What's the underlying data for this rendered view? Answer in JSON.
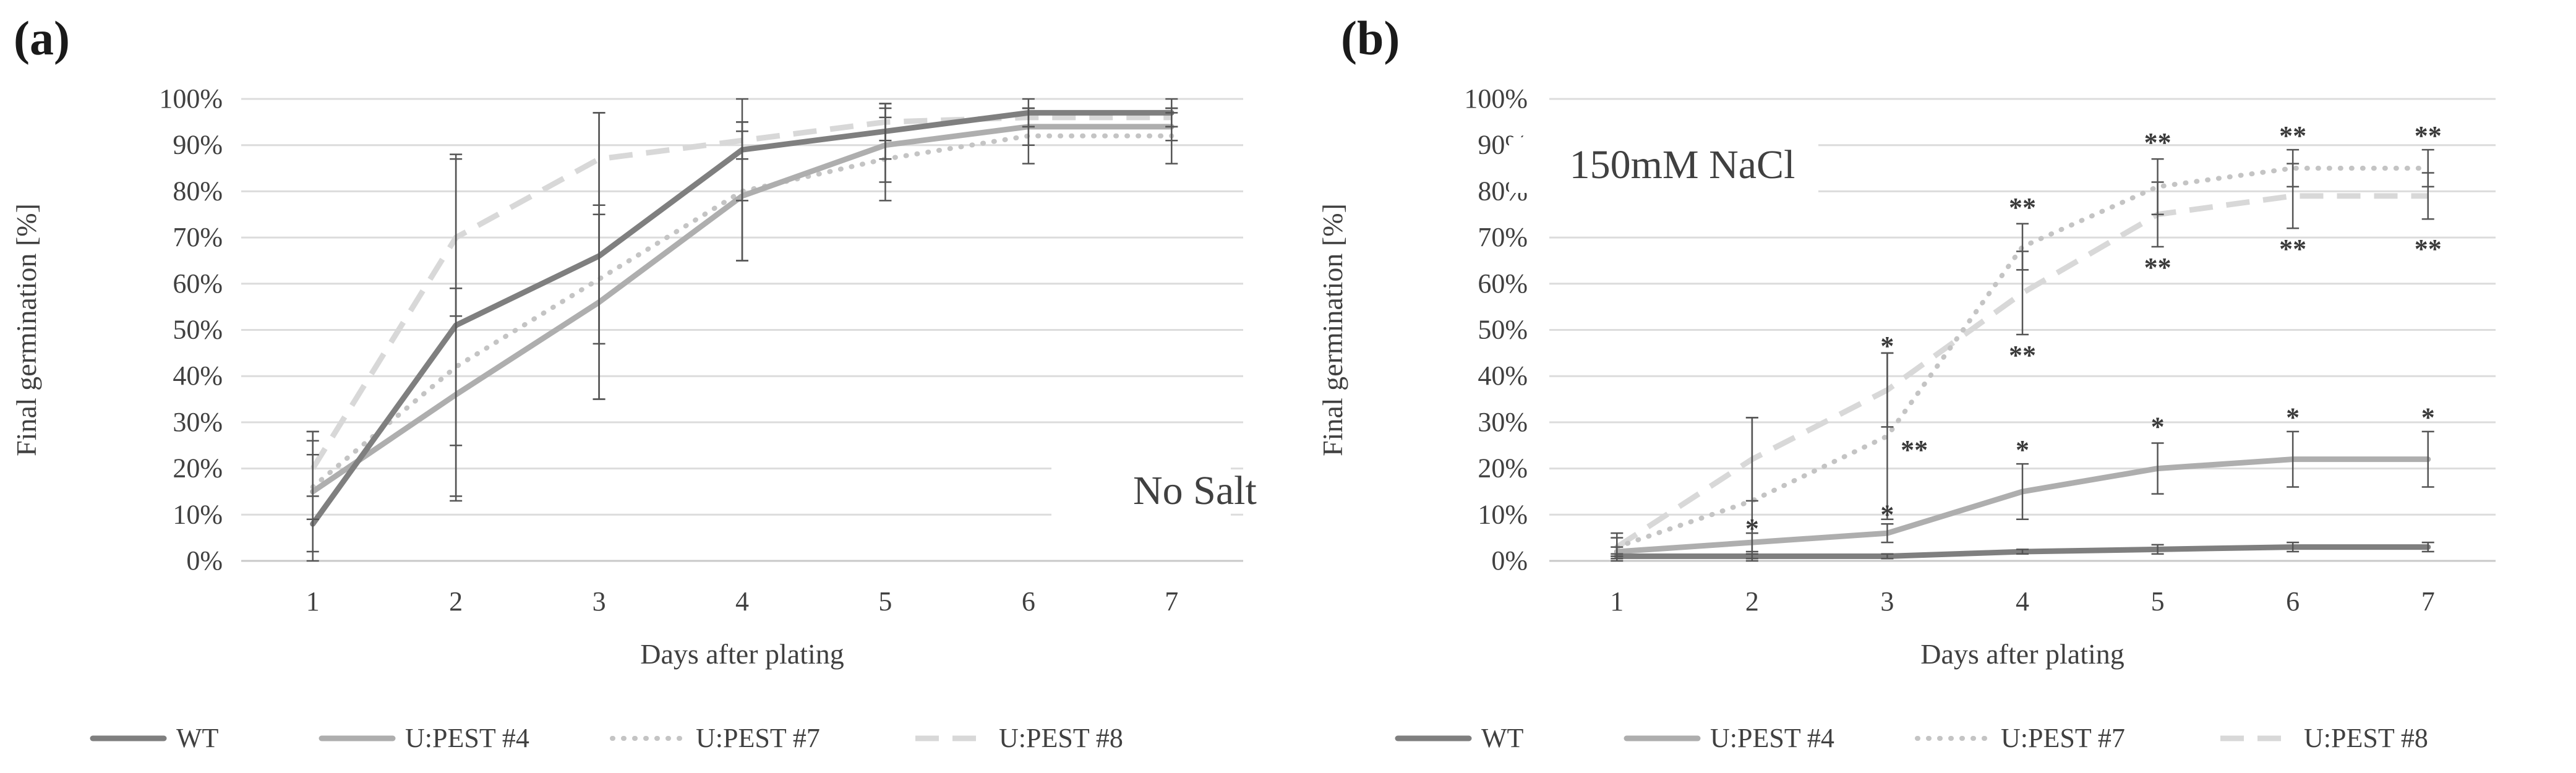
{
  "chart_data": [
    {
      "panel": "(a)",
      "type": "line",
      "title": "",
      "annotation": "No Salt",
      "xlabel": "Days after plating",
      "ylabel": "Final germination [%]",
      "categories": [
        "1",
        "2",
        "3",
        "4",
        "5",
        "6",
        "7"
      ],
      "ylim": [
        0,
        100
      ],
      "yticks": [
        "0%",
        "10%",
        "20%",
        "30%",
        "40%",
        "50%",
        "60%",
        "70%",
        "80%",
        "90%",
        "100%"
      ],
      "grid": true,
      "series": [
        {
          "name": "WT",
          "style": "solid-dark",
          "values": [
            8,
            51,
            66,
            89,
            93,
            97,
            97
          ],
          "errors": [
            20,
            37,
            31,
            11,
            6,
            3,
            3
          ]
        },
        {
          "name": "U:PEST #4",
          "style": "solid-light",
          "values": [
            15,
            36,
            56,
            79,
            90,
            94,
            94
          ],
          "errors": [
            13,
            23,
            21,
            14,
            8,
            4,
            3
          ]
        },
        {
          "name": "U:PEST #7",
          "style": "dotted",
          "values": [
            16,
            42,
            61,
            80,
            87,
            92,
            92
          ],
          "errors": [
            7,
            17,
            14,
            15,
            9,
            6,
            6
          ]
        },
        {
          "name": "U:PEST #8",
          "style": "dashed",
          "values": [
            20,
            70,
            87,
            91,
            95,
            96,
            96
          ],
          "errors": [
            6,
            17,
            10,
            4,
            4,
            2,
            2
          ]
        }
      ],
      "significance": []
    },
    {
      "panel": "(b)",
      "type": "line",
      "title": "",
      "annotation": "150mM NaCl",
      "xlabel": "Days after plating",
      "ylabel": "Final  germination [%]",
      "categories": [
        "1",
        "2",
        "3",
        "4",
        "5",
        "6",
        "7"
      ],
      "ylim": [
        0,
        100
      ],
      "yticks": [
        "0%",
        "10%",
        "20%",
        "30%",
        "40%",
        "50%",
        "60%",
        "70%",
        "80%",
        "90%",
        "100%"
      ],
      "grid": true,
      "series": [
        {
          "name": "WT",
          "style": "solid-dark",
          "values": [
            1,
            1,
            1,
            2,
            2.5,
            3,
            3
          ],
          "errors": [
            0.5,
            0.5,
            0.5,
            0.5,
            1,
            1,
            1
          ]
        },
        {
          "name": "U:PEST #4",
          "style": "solid-light",
          "values": [
            2,
            4,
            6,
            15,
            20,
            22,
            22
          ],
          "errors": [
            1,
            2,
            2,
            6,
            5.5,
            6,
            6
          ]
        },
        {
          "name": "U:PEST #7",
          "style": "dotted",
          "values": [
            3,
            13,
            27,
            68,
            81,
            85,
            85
          ],
          "errors": [
            3,
            18,
            18,
            5,
            6,
            4,
            4
          ]
        },
        {
          "name": "U:PEST #8",
          "style": "dashed",
          "values": [
            3,
            22,
            37,
            58,
            75,
            79,
            79
          ],
          "errors": [
            2,
            9,
            8,
            9,
            7,
            7,
            5
          ]
        }
      ],
      "significance": [
        {
          "day": 2,
          "y": 7.5,
          "text": "*"
        },
        {
          "day": 3,
          "y": 10.5,
          "text": "*"
        },
        {
          "day": 3,
          "y": 47,
          "text": "*"
        },
        {
          "day": 3,
          "y": 24.5,
          "text": "**",
          "dx": 0.2
        },
        {
          "day": 4,
          "y": 24.5,
          "text": "*"
        },
        {
          "day": 4,
          "y": 77,
          "text": "**"
        },
        {
          "day": 4,
          "y": 45,
          "text": "**"
        },
        {
          "day": 5,
          "y": 29.5,
          "text": "*"
        },
        {
          "day": 5,
          "y": 91,
          "text": "**"
        },
        {
          "day": 5,
          "y": 64,
          "text": "**"
        },
        {
          "day": 6,
          "y": 31.5,
          "text": "*"
        },
        {
          "day": 6,
          "y": 92.5,
          "text": "**"
        },
        {
          "day": 6,
          "y": 68,
          "text": "**"
        },
        {
          "day": 7,
          "y": 31.5,
          "text": "*"
        },
        {
          "day": 7,
          "y": 92.5,
          "text": "**"
        },
        {
          "day": 7,
          "y": 68,
          "text": "**"
        }
      ]
    }
  ],
  "colors": {
    "solid-dark": "#7f7f7f",
    "solid-light": "#aeaeae",
    "dotted": "#c4c4c4",
    "dashed": "#d8d8d8",
    "grid": "#dcdcdc",
    "error": "#555555",
    "text": "#404040",
    "label": "#1a1a1a"
  }
}
